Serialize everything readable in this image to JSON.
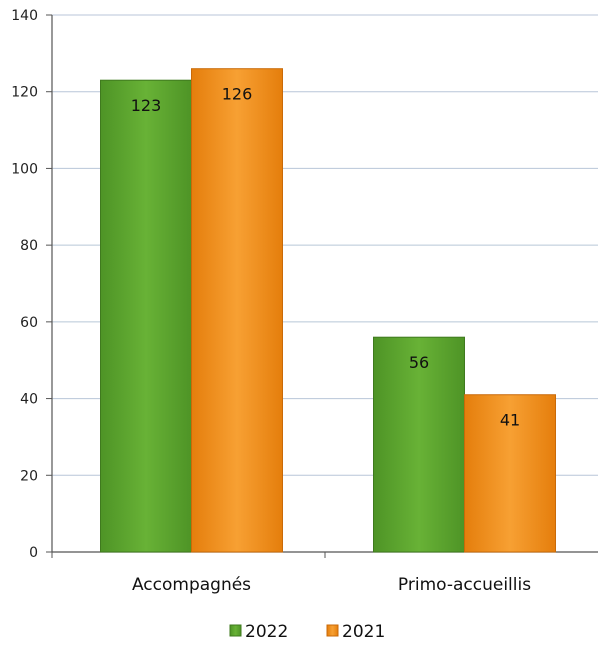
{
  "chart_data": {
    "type": "bar",
    "categories": [
      "Accompagnés",
      "Primo-accueillis"
    ],
    "series": [
      {
        "name": "2022",
        "values": [
          123,
          56
        ],
        "color": "#5aa02c"
      },
      {
        "name": "2021",
        "values": [
          126,
          41
        ],
        "color": "#f08c12"
      }
    ],
    "ylim": [
      0,
      140
    ],
    "yticks": [
      0,
      20,
      40,
      60,
      80,
      100,
      120,
      140
    ],
    "grid": true,
    "legend_position": "bottom",
    "data_labels": true
  }
}
